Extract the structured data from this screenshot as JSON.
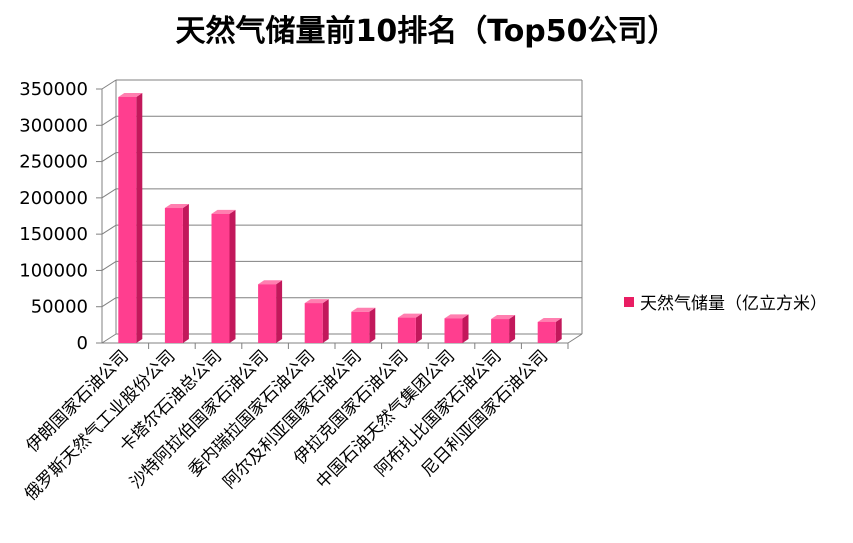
{
  "chart_data": {
    "type": "bar",
    "title": "天然气储量前10排名（Top50公司）",
    "categories": [
      "伊朗国家石油公司",
      "俄罗斯天然气工业股份公司",
      "卡塔尔石油总公司",
      "沙特阿拉伯国家石油公司",
      "委内瑞拉国家石油公司",
      "阿尔及利亚国家石油公司",
      "伊拉克国家石油公司",
      "中国石油天然气集团公司",
      "阿布扎比国家石油公司",
      "尼日利亚国家石油公司"
    ],
    "series": [
      {
        "name": "天然气储量（亿立方米）",
        "values": [
          339000,
          186000,
          178000,
          81000,
          55000,
          43000,
          35000,
          34000,
          33000,
          29000
        ]
      }
    ],
    "xlabel": "",
    "ylabel": "",
    "ylim": [
      0,
      350000
    ],
    "yticks": [
      "0",
      "50000",
      "100000",
      "150000",
      "200000",
      "250000",
      "300000",
      "350000"
    ],
    "grid": true,
    "legend_position": "right",
    "colors": {
      "bar_front": "#ff3e8f",
      "bar_side": "#c2185b",
      "bar_top": "#ff7fb0",
      "grid": "#808080",
      "legend": "#e91e63"
    }
  }
}
